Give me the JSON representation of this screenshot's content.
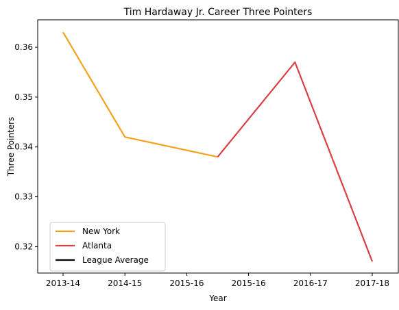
{
  "chart_data": {
    "type": "line",
    "title": "Tim Hardaway Jr. Career Three Pointers",
    "xlabel": "Year",
    "ylabel": "Three Pointers",
    "categories": [
      "2013-14",
      "2014-15",
      "2015-16",
      "2015-16",
      "2016-17",
      "2017-18"
    ],
    "ylim": [
      0.3147,
      0.3655
    ],
    "yticks": [
      0.32,
      0.33,
      0.34,
      0.35,
      0.36
    ],
    "ytick_labels": [
      "0.32",
      "0.33",
      "0.34",
      "0.35",
      "0.36"
    ],
    "grid": false,
    "legend_position": "lower-left",
    "series": [
      {
        "name": "New York",
        "color": "#f5a11c",
        "points": [
          {
            "x": 0,
            "y": 0.363
          },
          {
            "x": 1,
            "y": 0.342
          },
          {
            "x": 2.5,
            "y": 0.338
          }
        ]
      },
      {
        "name": "Atlanta",
        "color": "#d94044",
        "points": [
          {
            "x": 2.5,
            "y": 0.338
          },
          {
            "x": 3.75,
            "y": 0.357
          },
          {
            "x": 5,
            "y": 0.317
          }
        ]
      },
      {
        "name": "League Average",
        "color": "#000000",
        "points": []
      }
    ]
  }
}
